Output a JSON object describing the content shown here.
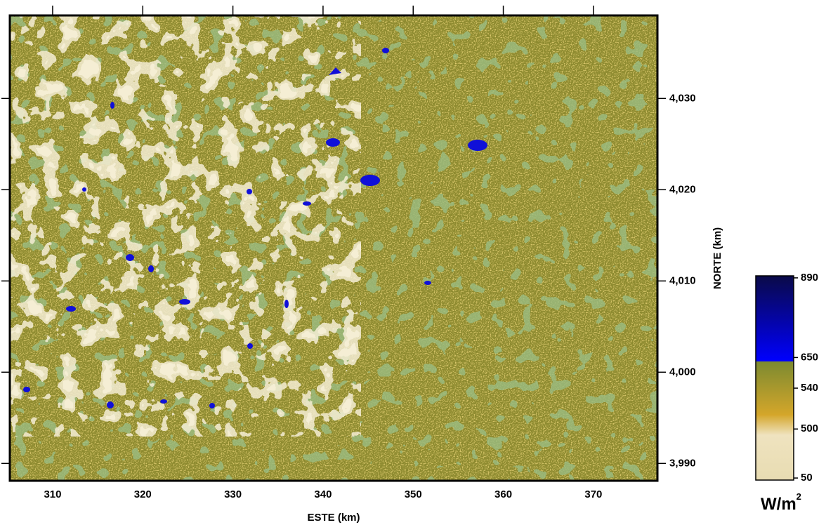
{
  "map": {
    "xlabel": "ESTE (km)",
    "ylabel": "NORTE (km)",
    "xlim": [
      305.25,
      377.1
    ],
    "ylim": [
      3988.1,
      4039.1
    ],
    "xticks": [
      310,
      320,
      330,
      340,
      350,
      360,
      370
    ],
    "yticks": [
      {
        "value": 3990,
        "label": "3,990"
      },
      {
        "value": 4000,
        "label": "4,000"
      },
      {
        "value": 4010,
        "label": "4,010"
      },
      {
        "value": 4020,
        "label": "4,020"
      },
      {
        "value": 4030,
        "label": "4,030"
      }
    ],
    "colorbar": {
      "ticks": [
        50,
        500,
        540,
        650,
        890
      ],
      "unit": "W/m",
      "unit_exponent": "2",
      "colors": [
        "#e8dcb2",
        "#efe3bf",
        "#d4a62a",
        "#7c8a30",
        "#2e7a3c",
        "#0000ff",
        "#0a0a48"
      ]
    }
  }
}
